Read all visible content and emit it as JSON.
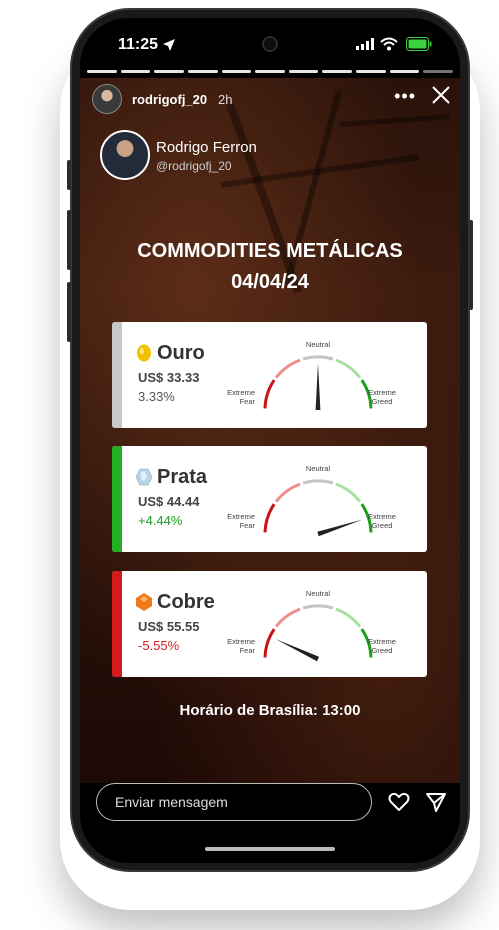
{
  "status_bar": {
    "time": "11:25",
    "icons": [
      "location-arrow-icon",
      "signal-icon",
      "wifi-icon",
      "battery-icon"
    ],
    "battery_color": "#3ecf3e"
  },
  "story": {
    "segments_total": 11,
    "segments_done": 10,
    "username": "rodrigofj_20",
    "elapsed": "2h",
    "more_label": "•••"
  },
  "profile": {
    "name": "Rodrigo Ferron",
    "handle": "@rodrigofj_20"
  },
  "title": {
    "line1": "COMMODITIES METÁLICAS",
    "line2": "04/04/24"
  },
  "gauge_labels": {
    "neutral": "Neutral",
    "fear_line1": "Extreme",
    "fear_line2": "Fear",
    "greed_line1": "Extreme",
    "greed_line2": "Greed"
  },
  "metals": [
    {
      "name": "Ouro",
      "price": "US$ 33.33",
      "change": "3.33%",
      "change_color": "#555555",
      "stripe_color": "#c8c8c8",
      "icon": "gold-nugget-icon",
      "icon_color": "#f2c200",
      "needle_value": 0.5
    },
    {
      "name": "Prata",
      "price": "US$ 44.44",
      "change": "+4.44%",
      "change_color": "#1ea01e",
      "stripe_color": "#22b022",
      "icon": "silver-crystal-icon",
      "icon_color": "#b8d4e8",
      "needle_value": 0.9
    },
    {
      "name": "Cobre",
      "price": "US$ 55.55",
      "change": "-5.55%",
      "change_color": "#d42020",
      "stripe_color": "#d41a1a",
      "icon": "copper-gem-icon",
      "icon_color": "#f07a18",
      "needle_value": 0.14
    }
  ],
  "footer": {
    "time_label": "Horário de Brasília: 13:00"
  },
  "reply": {
    "placeholder": "Enviar mensagem"
  },
  "colors": {
    "fear": "#c81414",
    "fear_light": "#f08c8c",
    "neutral": "#c4c4c4",
    "greed_light": "#a8e0a0",
    "greed": "#1aa01a"
  }
}
